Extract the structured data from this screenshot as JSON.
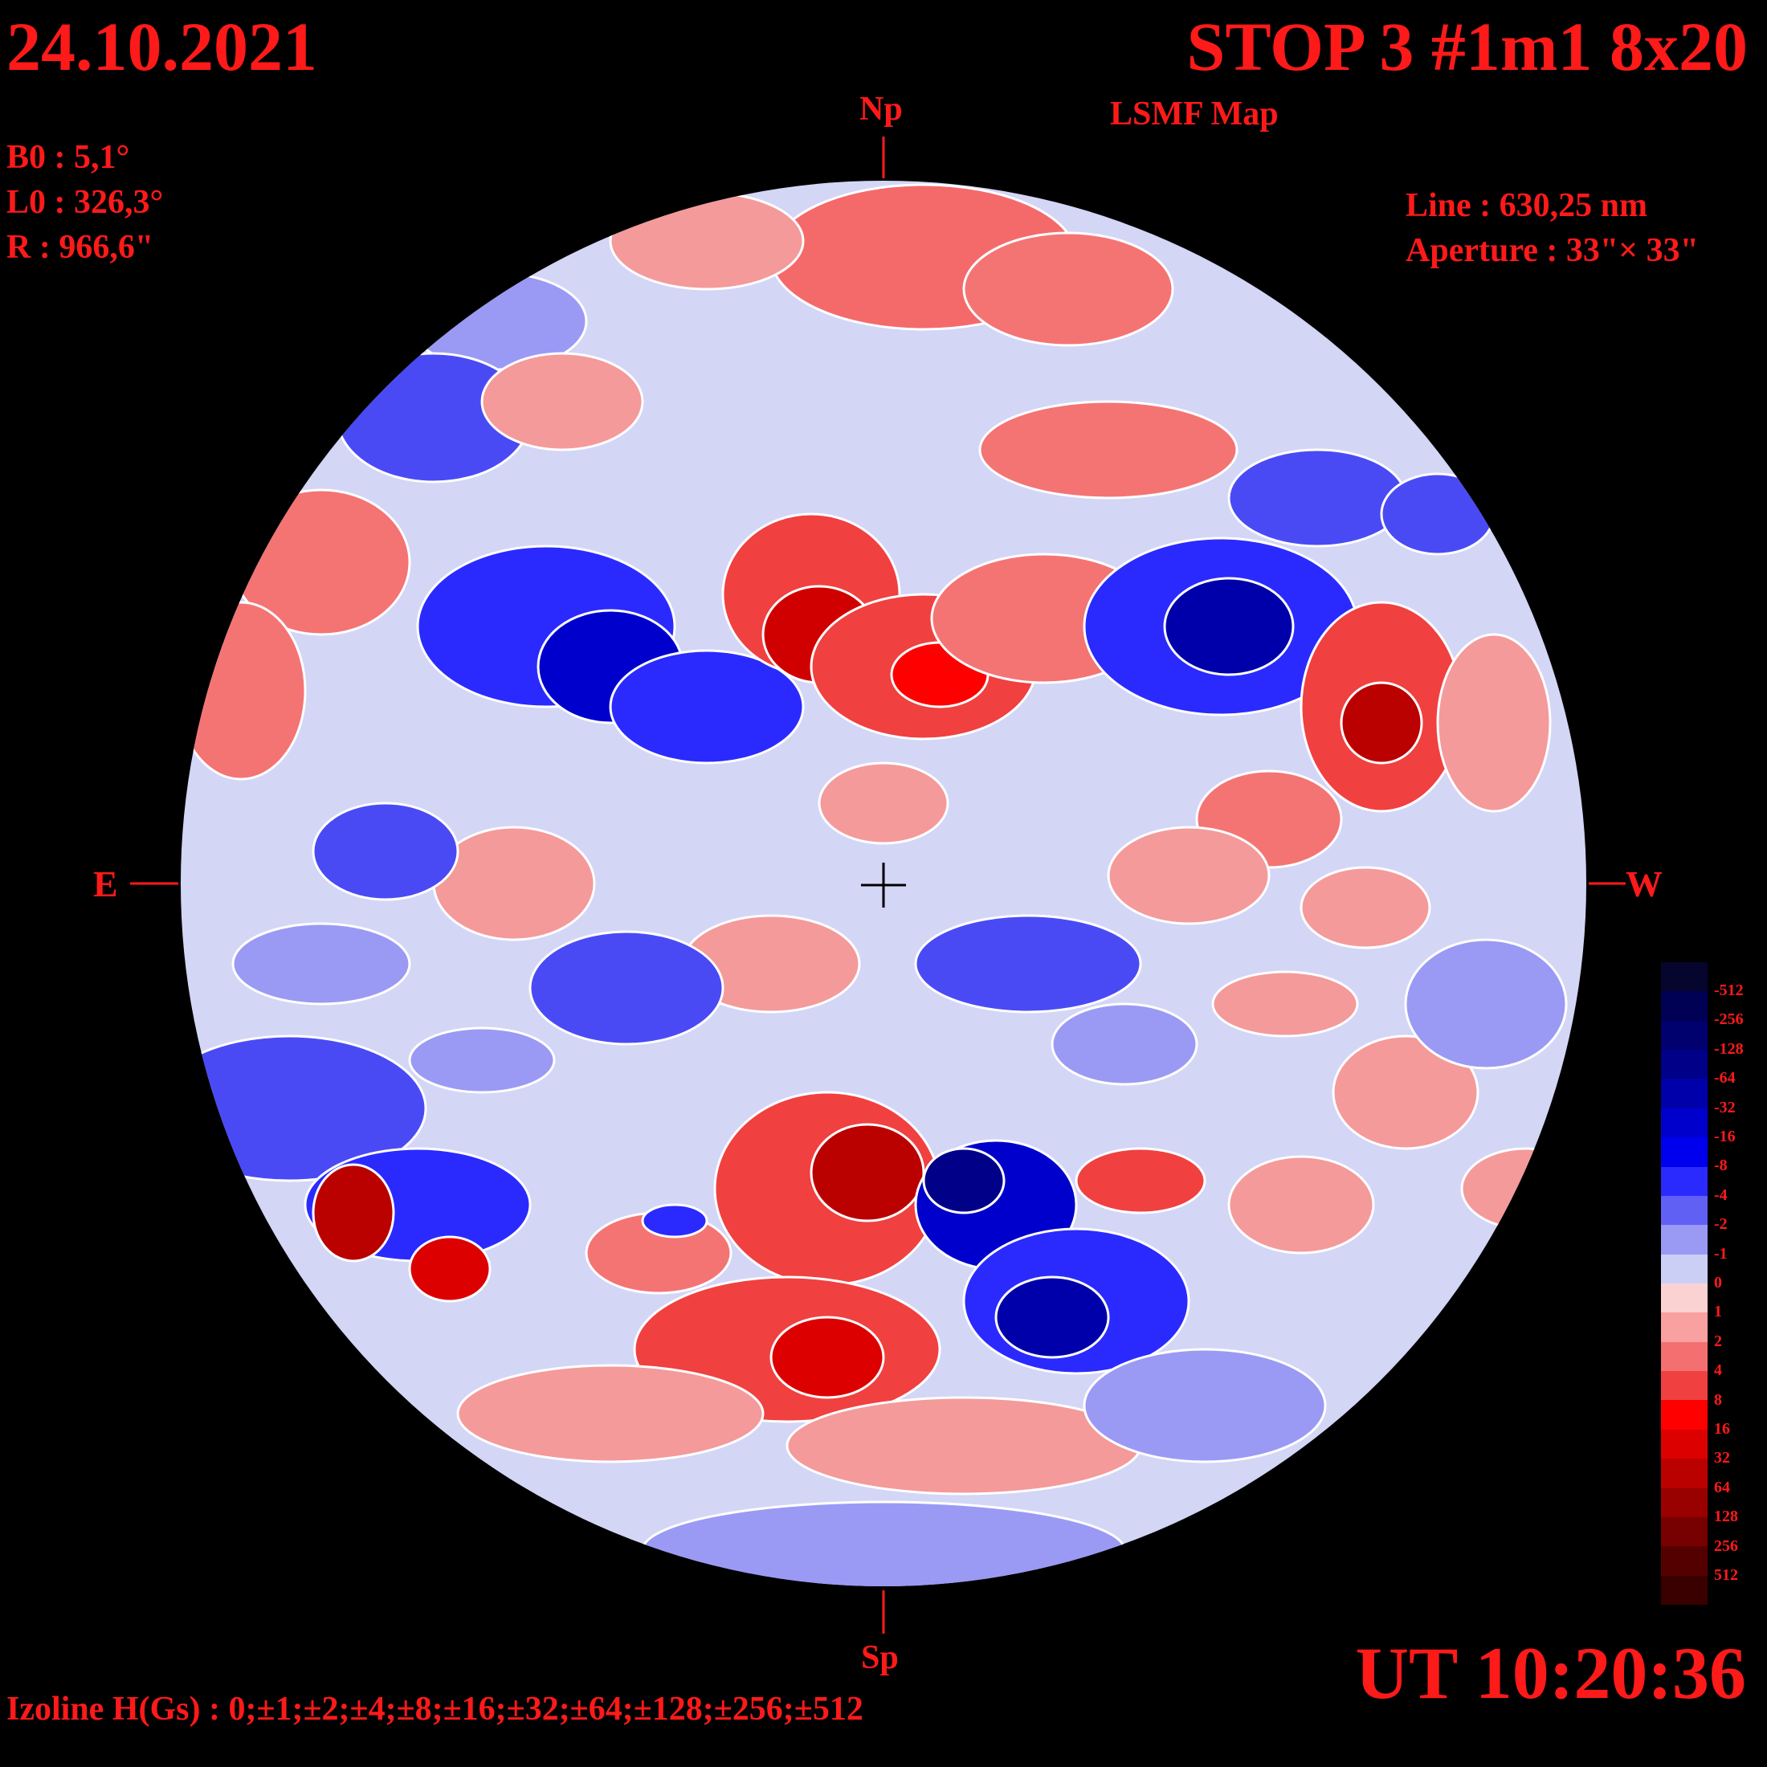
{
  "header": {
    "date": "24.10.2021",
    "title": "STOP 3 #1m1 8x20",
    "subtitle": "LSMF  Map"
  },
  "params": {
    "b0": "B0 : 5,1°",
    "l0": "L0 : 326,3°",
    "radius": "R  : 966,6\"",
    "line": "Line :  630,25 nm",
    "aperture": "Aperture : 33\"× 33\""
  },
  "axes": {
    "north": "Np",
    "south": "Sp",
    "east": "E",
    "west": "W"
  },
  "footer": {
    "time": "UT 10:20:36",
    "izoline": "Izoline H(Gs) : 0;±1;±2;±4;±8;±16;±32;±64;±128;±256;±512"
  },
  "color_scale": {
    "labels": [
      "-512",
      "-256",
      "-128",
      "-64",
      "-32",
      "-16",
      "-8",
      "-4",
      "-2",
      "-1",
      "0",
      "1",
      "2",
      "4",
      "8",
      "16",
      "32",
      "64",
      "128",
      "256",
      "512"
    ],
    "colors": [
      "#05052e",
      "#000055",
      "#00006e",
      "#000088",
      "#0000aa",
      "#0000cc",
      "#0000ee",
      "#2a2aff",
      "#6060f5",
      "#9a9af5",
      "#cccff5",
      "#fbd2d2",
      "#f9a0a0",
      "#f47070",
      "#f04040",
      "#ff0000",
      "#dd0000",
      "#bb0000",
      "#990000",
      "#770000",
      "#550000",
      "#3a0000"
    ]
  }
}
